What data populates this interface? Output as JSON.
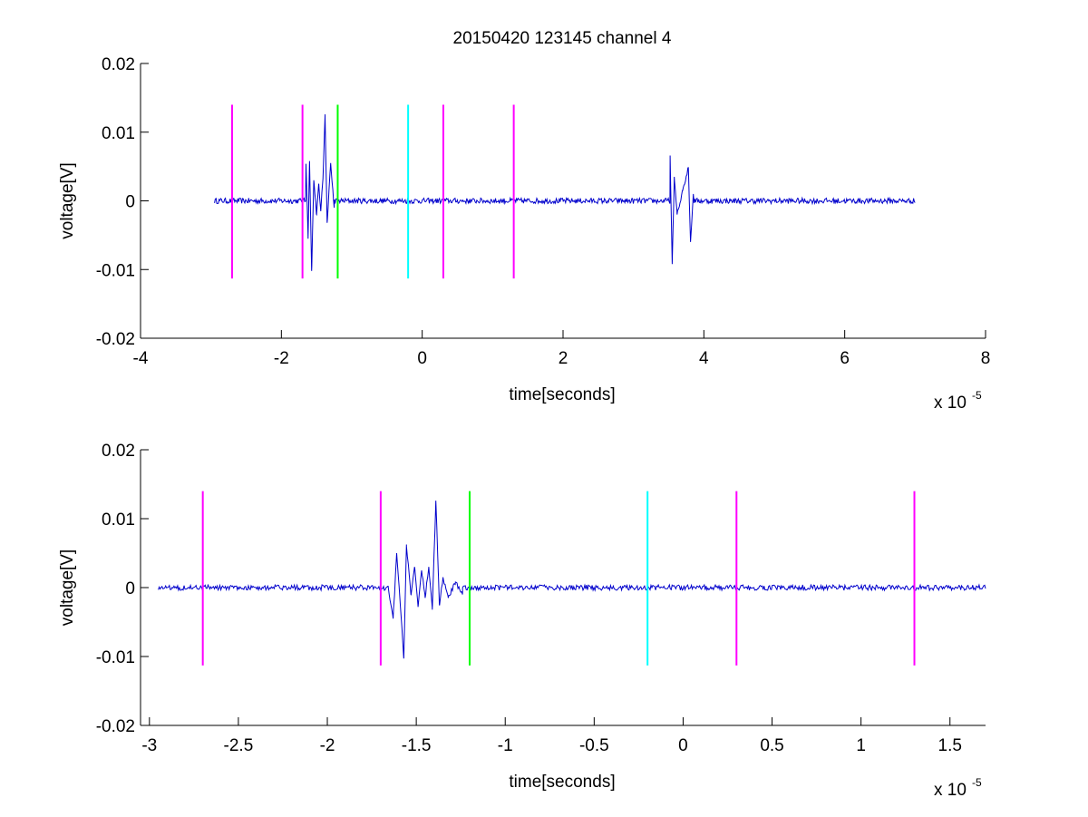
{
  "figure": {
    "title": "20150420 123145 channel 4"
  },
  "chart_data": [
    {
      "type": "line",
      "title": "20150420 123145 channel 4",
      "xlabel": "time[seconds]",
      "ylabel": "voltage[V]",
      "x_multiplier_label": "x 10",
      "x_multiplier_exponent": "-5",
      "xlim": [
        -4e-05,
        8e-05
      ],
      "ylim": [
        -0.02,
        0.02
      ],
      "xticks": [
        -4e-05,
        -2e-05,
        0,
        2e-05,
        4e-05,
        6e-05,
        8e-05
      ],
      "xtick_labels": [
        "-4",
        "-2",
        "0",
        "2",
        "4",
        "6",
        "8"
      ],
      "yticks": [
        -0.02,
        -0.01,
        0,
        0.01,
        0.02
      ],
      "ytick_labels": [
        "-0.02",
        "-0.01",
        "0",
        "0.01",
        "0.02"
      ],
      "grid": false,
      "series": [
        {
          "color": "#0000cc",
          "x_start": -2.95e-05,
          "x_end": 7e-05,
          "noise_amplitude": 0.0004,
          "bursts": [
            {
              "values": [
                [
                  -1.65e-05,
                  0.0054
                ],
                [
                  -1.62e-05,
                  -0.0055
                ],
                [
                  -1.6e-05,
                  0.0058
                ],
                [
                  -1.57e-05,
                  -0.0102
                ],
                [
                  -1.54e-05,
                  0.003
                ],
                [
                  -1.5e-05,
                  -0.002
                ],
                [
                  -1.47e-05,
                  0.0025
                ],
                [
                  -1.44e-05,
                  -0.0015
                ],
                [
                  -1.41e-05,
                  0.0032
                ],
                [
                  -1.38e-05,
                  0.0126
                ],
                [
                  -1.35e-05,
                  -0.0032
                ],
                [
                  -1.3e-05,
                  0.0055
                ],
                [
                  -1.25e-05,
                  -0.001
                ]
              ]
            },
            {
              "values": [
                [
                  3.52e-05,
                  0.0066
                ],
                [
                  3.55e-05,
                  -0.0092
                ],
                [
                  3.58e-05,
                  0.0035
                ],
                [
                  3.62e-05,
                  -0.002
                ],
                [
                  3.7e-05,
                  0.0015
                ],
                [
                  3.78e-05,
                  0.0049
                ],
                [
                  3.81e-05,
                  -0.006
                ],
                [
                  3.85e-05,
                  0.001
                ]
              ]
            }
          ]
        }
      ],
      "markers": [
        {
          "x": -2.7e-05,
          "color": "#ff00ff",
          "y_range": [
            -0.0113,
            0.014
          ]
        },
        {
          "x": -1.7e-05,
          "color": "#ff00ff",
          "y_range": [
            -0.0113,
            0.014
          ]
        },
        {
          "x": -1.2e-05,
          "color": "#00ff00",
          "y_range": [
            -0.0113,
            0.014
          ]
        },
        {
          "x": -2e-06,
          "color": "#00ffff",
          "y_range": [
            -0.0113,
            0.014
          ]
        },
        {
          "x": 3e-06,
          "color": "#ff00ff",
          "y_range": [
            -0.0113,
            0.014
          ]
        },
        {
          "x": 1.3e-05,
          "color": "#ff00ff",
          "y_range": [
            -0.0113,
            0.014
          ]
        }
      ]
    },
    {
      "type": "line",
      "title": "",
      "xlabel": "time[seconds]",
      "ylabel": "voltage[V]",
      "x_multiplier_label": "x 10",
      "x_multiplier_exponent": "-5",
      "xlim": [
        -3.05e-05,
        1.7e-05
      ],
      "ylim": [
        -0.02,
        0.02
      ],
      "xticks": [
        -3e-05,
        -2.5e-05,
        -2e-05,
        -1.5e-05,
        -1e-05,
        -5e-06,
        0,
        5e-06,
        1e-05,
        1.5e-05
      ],
      "xtick_labels": [
        "-3",
        "-2.5",
        "-2",
        "-1.5",
        "-1",
        "-0.5",
        "0",
        "0.5",
        "1",
        "1.5"
      ],
      "yticks": [
        -0.02,
        -0.01,
        0,
        0.01,
        0.02
      ],
      "ytick_labels": [
        "-0.02",
        "-0.01",
        "0",
        "0.01",
        "0.02"
      ],
      "grid": false,
      "series": [
        {
          "color": "#0000cc",
          "x_start": -2.95e-05,
          "x_end": 1.7e-05,
          "noise_amplitude": 0.0004,
          "bursts": [
            {
              "values": [
                [
                  -1.66e-05,
                  0.0002
                ],
                [
                  -1.63e-05,
                  -0.0045
                ],
                [
                  -1.61e-05,
                  0.005
                ],
                [
                  -1.59e-05,
                  -0.0025
                ],
                [
                  -1.57e-05,
                  -0.0102
                ],
                [
                  -1.555e-05,
                  0.006
                ],
                [
                  -1.53e-05,
                  -0.001
                ],
                [
                  -1.51e-05,
                  0.003
                ],
                [
                  -1.49e-05,
                  -0.0028
                ],
                [
                  -1.47e-05,
                  0.0025
                ],
                [
                  -1.45e-05,
                  -0.0015
                ],
                [
                  -1.43e-05,
                  0.003
                ],
                [
                  -1.41e-05,
                  -0.0032
                ],
                [
                  -1.39e-05,
                  0.0126
                ],
                [
                  -1.37e-05,
                  -0.0025
                ],
                [
                  -1.35e-05,
                  0.0015
                ],
                [
                  -1.32e-05,
                  -0.0015
                ],
                [
                  -1.28e-05,
                  0.0008
                ],
                [
                  -1.24e-05,
                  -0.001
                ]
              ]
            }
          ]
        }
      ],
      "markers": [
        {
          "x": -2.7e-05,
          "color": "#ff00ff",
          "y_range": [
            -0.0113,
            0.014
          ]
        },
        {
          "x": -1.7e-05,
          "color": "#ff00ff",
          "y_range": [
            -0.0113,
            0.014
          ]
        },
        {
          "x": -1.2e-05,
          "color": "#00ff00",
          "y_range": [
            -0.0113,
            0.014
          ]
        },
        {
          "x": -2e-06,
          "color": "#00ffff",
          "y_range": [
            -0.0113,
            0.014
          ]
        },
        {
          "x": 3e-06,
          "color": "#ff00ff",
          "y_range": [
            -0.0113,
            0.014
          ]
        },
        {
          "x": 1.3e-05,
          "color": "#ff00ff",
          "y_range": [
            -0.0113,
            0.014
          ]
        }
      ]
    }
  ]
}
